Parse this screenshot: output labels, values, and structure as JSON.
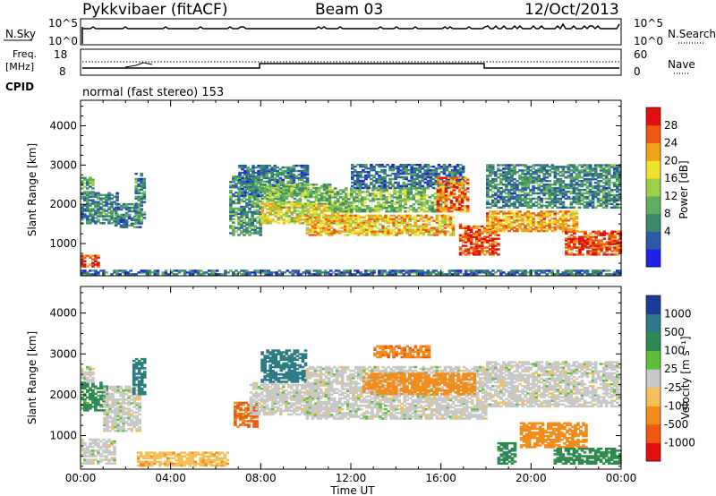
{
  "header": {
    "station": "Pykkvibaer (fitACF)",
    "beam": "Beam 03",
    "date": "12/Oct/2013"
  },
  "top_panels": {
    "nsky_label": "N.Sky",
    "nsky_ticks": [
      "10^5",
      "10^0"
    ],
    "nsearch_label": "N.Search",
    "nsearch_ticks": [
      "10^5",
      "10^0"
    ],
    "freq_label": "Freq.",
    "freq_unit": "[MHz]",
    "freq_ticks": [
      "18",
      "8"
    ],
    "nave_label": "Nave",
    "nave_ticks": [
      "60",
      "0"
    ],
    "cpid_label": "CPID",
    "cpid_value": "normal (fast stereo) 153"
  },
  "chart_data": [
    {
      "type": "heatmap",
      "panel": "power",
      "ylabel": "Slant Range [km]",
      "y_ticks": [
        1000,
        2000,
        3000,
        4000
      ],
      "ylim": [
        180,
        4650
      ],
      "xlim": [
        0,
        24
      ],
      "x_ticks": [
        "00:00",
        "04:00",
        "08:00",
        "12:00",
        "16:00",
        "20:00",
        "00:00"
      ],
      "colorbar": {
        "label": "Power [dB]",
        "ticks": [
          "28",
          "24",
          "20",
          "16",
          "12",
          "8",
          "4"
        ],
        "colors": [
          "#2020e6",
          "#2a5aa8",
          "#3c8a6a",
          "#5fae5f",
          "#9ccf4a",
          "#f0e030",
          "#f2a21a",
          "#ee5a10",
          "#e01010"
        ]
      },
      "echo_bands": [
        {
          "t0": 0.0,
          "t1": 0.5,
          "r0": 2250,
          "r1": 2700,
          "power": 12
        },
        {
          "t0": 0.0,
          "t1": 1.6,
          "r0": 1500,
          "r1": 2300,
          "power": 10
        },
        {
          "t0": 0.0,
          "t1": 0.8,
          "r0": 400,
          "r1": 700,
          "power": 26
        },
        {
          "t0": 1.5,
          "t1": 2.6,
          "r0": 1400,
          "r1": 2000,
          "power": 9
        },
        {
          "t0": 2.4,
          "t1": 2.8,
          "r0": 1500,
          "r1": 2800,
          "power": 10
        },
        {
          "t0": 6.6,
          "t1": 8.0,
          "r0": 1200,
          "r1": 2700,
          "power": 11
        },
        {
          "t0": 7.0,
          "t1": 10.0,
          "r0": 2200,
          "r1": 3000,
          "power": 9
        },
        {
          "t0": 8.0,
          "t1": 11.0,
          "r0": 1900,
          "r1": 2500,
          "power": 14
        },
        {
          "t0": 8.0,
          "t1": 12.0,
          "r0": 1500,
          "r1": 2000,
          "power": 18
        },
        {
          "t0": 10.0,
          "t1": 16.5,
          "r0": 1200,
          "r1": 1700,
          "power": 21
        },
        {
          "t0": 11.0,
          "t1": 16.0,
          "r0": 1800,
          "r1": 2400,
          "power": 14
        },
        {
          "t0": 12.0,
          "t1": 17.0,
          "r0": 2400,
          "r1": 3000,
          "power": 8
        },
        {
          "t0": 15.8,
          "t1": 17.2,
          "r0": 1800,
          "r1": 2700,
          "power": 24
        },
        {
          "t0": 16.8,
          "t1": 18.5,
          "r0": 700,
          "r1": 1500,
          "power": 26
        },
        {
          "t0": 18.0,
          "t1": 22.0,
          "r0": 1300,
          "r1": 1800,
          "power": 22
        },
        {
          "t0": 18.0,
          "t1": 24.0,
          "r0": 1900,
          "r1": 3000,
          "power": 10
        },
        {
          "t0": 21.5,
          "t1": 24.0,
          "r0": 700,
          "r1": 1300,
          "power": 27
        },
        {
          "t0": 0.0,
          "t1": 24.0,
          "r0": 200,
          "r1": 330,
          "power": 8
        }
      ]
    },
    {
      "type": "heatmap",
      "panel": "velocity",
      "ylabel": "Slant Range [km]",
      "y_ticks": [
        1000,
        2000,
        3000,
        4000
      ],
      "ylim": [
        180,
        4650
      ],
      "xlim": [
        0,
        24
      ],
      "x_ticks": [
        "00:00",
        "04:00",
        "08:00",
        "12:00",
        "16:00",
        "20:00",
        "00:00"
      ],
      "xlabel": "Time UT",
      "colorbar": {
        "label": "Velocity [m s⁻¹]",
        "ticks": [
          "1000",
          "500",
          "100",
          "25",
          "-25",
          "-100",
          "-500",
          "-1000"
        ],
        "colors": [
          "#1c3c9c",
          "#2d7a8a",
          "#2e8a50",
          "#5fbf3c",
          "#c8c8c8",
          "#f5c05a",
          "#f28c1a",
          "#f05a10",
          "#e01010"
        ]
      },
      "echo_bands": [
        {
          "t0": 0.0,
          "t1": 1.2,
          "r0": 1600,
          "r1": 2300,
          "velocity": 300
        },
        {
          "t0": 0.0,
          "t1": 0.6,
          "r0": 2300,
          "r1": 2700,
          "velocity": 0
        },
        {
          "t0": 0.0,
          "t1": 1.5,
          "r0": 300,
          "r1": 900,
          "velocity": 0
        },
        {
          "t0": 1.0,
          "t1": 2.6,
          "r0": 1100,
          "r1": 2200,
          "velocity": 0
        },
        {
          "t0": 2.3,
          "t1": 2.8,
          "r0": 2000,
          "r1": 2900,
          "velocity": 600
        },
        {
          "t0": 2.5,
          "t1": 6.5,
          "r0": 250,
          "r1": 600,
          "velocity": -80
        },
        {
          "t0": 6.8,
          "t1": 7.8,
          "r0": 1200,
          "r1": 1800,
          "velocity": -600
        },
        {
          "t0": 7.5,
          "t1": 10.5,
          "r0": 1500,
          "r1": 2300,
          "velocity": 0
        },
        {
          "t0": 8.0,
          "t1": 10.0,
          "r0": 2300,
          "r1": 3100,
          "velocity": 700
        },
        {
          "t0": 10.0,
          "t1": 18.0,
          "r0": 1400,
          "r1": 2700,
          "velocity": 0
        },
        {
          "t0": 12.5,
          "t1": 17.5,
          "r0": 2000,
          "r1": 2500,
          "velocity": -150
        },
        {
          "t0": 13.0,
          "t1": 15.5,
          "r0": 2900,
          "r1": 3200,
          "velocity": -400
        },
        {
          "t0": 18.0,
          "t1": 24.0,
          "r0": 1700,
          "r1": 2800,
          "velocity": 0
        },
        {
          "t0": 18.5,
          "t1": 19.3,
          "r0": 300,
          "r1": 800,
          "velocity": 300
        },
        {
          "t0": 19.5,
          "t1": 22.5,
          "r0": 700,
          "r1": 1300,
          "velocity": -200
        },
        {
          "t0": 21.0,
          "t1": 24.0,
          "r0": 300,
          "r1": 700,
          "velocity": 200
        }
      ]
    }
  ]
}
